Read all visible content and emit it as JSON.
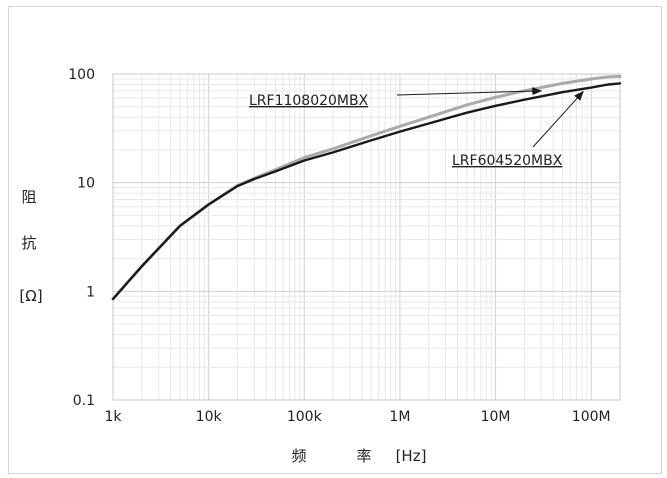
{
  "chart_data": {
    "type": "line",
    "x_scale": "log",
    "y_scale": "log",
    "xlim": [
      1000,
      200000000
    ],
    "ylim": [
      0.1,
      100
    ],
    "grid": true,
    "x_ticks": [
      {
        "value": 1000,
        "label": "1k"
      },
      {
        "value": 10000,
        "label": "10k"
      },
      {
        "value": 100000,
        "label": "100k"
      },
      {
        "value": 1000000,
        "label": "1M"
      },
      {
        "value": 10000000,
        "label": "10M"
      },
      {
        "value": 100000000,
        "label": "100M"
      }
    ],
    "y_ticks": [
      {
        "value": 0.1,
        "label": "0.1"
      },
      {
        "value": 1,
        "label": "1"
      },
      {
        "value": 10,
        "label": "10"
      },
      {
        "value": 100,
        "label": "100"
      }
    ],
    "ylabel": {
      "chars": [
        "阻",
        "抗"
      ],
      "unit": "[Ω]"
    },
    "xlabel": {
      "chars": [
        "频",
        "率"
      ],
      "unit": "[Hz]"
    },
    "series": [
      {
        "name": "LRF1108020MBX",
        "color": "#aaaaaa",
        "x": [
          1000,
          2000,
          5000,
          10000,
          20000,
          30000,
          50000,
          100000,
          200000,
          500000,
          1000000,
          2000000,
          5000000,
          10000000,
          20000000,
          50000000,
          100000000,
          150000000,
          200000000
        ],
        "y": [
          0.85,
          1.7,
          4.0,
          6.3,
          9.4,
          11.0,
          13.2,
          17.0,
          20.5,
          27.0,
          33.0,
          40.0,
          52.0,
          61.0,
          70.0,
          82.0,
          90.0,
          94.0,
          95.0
        ]
      },
      {
        "name": "LRF604520MBX",
        "color": "#1a1a1a",
        "x": [
          1000,
          2000,
          5000,
          10000,
          20000,
          30000,
          50000,
          100000,
          200000,
          500000,
          1000000,
          2000000,
          5000000,
          10000000,
          20000000,
          50000000,
          100000000,
          150000000,
          200000000
        ],
        "y": [
          0.85,
          1.7,
          4.0,
          6.3,
          9.3,
          10.8,
          12.7,
          16.0,
          19.0,
          24.5,
          29.5,
          35.0,
          44.0,
          51.0,
          58.0,
          68.0,
          75.0,
          80.0,
          82.0
        ]
      }
    ]
  }
}
